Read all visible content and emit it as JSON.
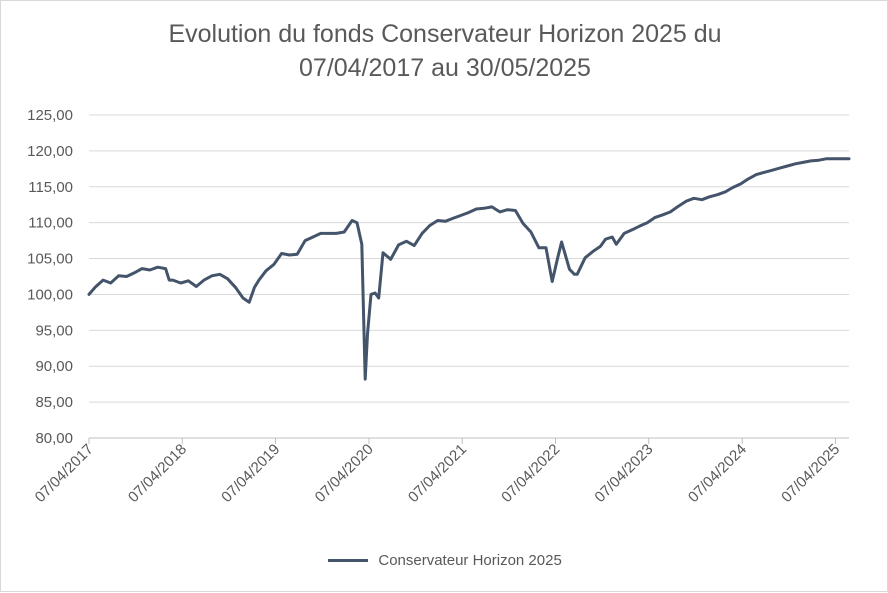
{
  "chart_data": {
    "type": "line",
    "title_line1": "Evolution du fonds Conservateur Horizon 2025 du",
    "title_line2": "07/04/2017 au 30/05/2025",
    "xlabel": "",
    "ylabel": "",
    "ylim": [
      80,
      125
    ],
    "yticks": [
      "80,00",
      "85,00",
      "90,00",
      "95,00",
      "100,00",
      "105,00",
      "110,00",
      "115,00",
      "120,00",
      "125,00"
    ],
    "xticks": [
      "07/04/2017",
      "07/04/2018",
      "07/04/2019",
      "07/04/2020",
      "07/04/2021",
      "07/04/2022",
      "07/04/2023",
      "07/04/2024",
      "07/04/2025"
    ],
    "x_range": [
      "07/04/2017",
      "30/05/2025"
    ],
    "grid": "horizontal",
    "legend_position": "bottom",
    "color": "#44546a",
    "series": [
      {
        "name": "Conservateur Horizon 2025",
        "x": [
          "2017-04-07",
          "2017-05-01",
          "2017-06-01",
          "2017-07-01",
          "2017-08-01",
          "2017-09-01",
          "2017-10-01",
          "2017-11-01",
          "2017-12-01",
          "2018-01-01",
          "2018-02-01",
          "2018-02-15",
          "2018-03-01",
          "2018-04-01",
          "2018-05-01",
          "2018-06-01",
          "2018-07-01",
          "2018-08-01",
          "2018-09-01",
          "2018-10-01",
          "2018-11-01",
          "2018-12-01",
          "2018-12-25",
          "2019-01-15",
          "2019-02-01",
          "2019-03-01",
          "2019-04-01",
          "2019-05-01",
          "2019-06-01",
          "2019-07-01",
          "2019-08-01",
          "2019-09-01",
          "2019-10-01",
          "2019-11-01",
          "2019-12-01",
          "2020-01-01",
          "2020-02-01",
          "2020-02-20",
          "2020-03-10",
          "2020-03-23",
          "2020-04-01",
          "2020-04-15",
          "2020-05-01",
          "2020-05-15",
          "2020-06-01",
          "2020-07-01",
          "2020-08-01",
          "2020-09-01",
          "2020-10-01",
          "2020-11-01",
          "2020-12-01",
          "2021-01-01",
          "2021-02-01",
          "2021-03-01",
          "2021-04-01",
          "2021-05-01",
          "2021-06-01",
          "2021-07-01",
          "2021-08-01",
          "2021-09-01",
          "2021-10-01",
          "2021-11-01",
          "2021-12-01",
          "2022-01-01",
          "2022-02-01",
          "2022-03-01",
          "2022-03-25",
          "2022-04-15",
          "2022-05-01",
          "2022-06-01",
          "2022-06-20",
          "2022-07-01",
          "2022-08-01",
          "2022-09-01",
          "2022-09-30",
          "2022-10-20",
          "2022-11-15",
          "2022-12-01",
          "2023-01-01",
          "2023-02-01",
          "2023-03-01",
          "2023-04-01",
          "2023-05-01",
          "2023-06-01",
          "2023-07-01",
          "2023-08-01",
          "2023-09-01",
          "2023-10-01",
          "2023-11-01",
          "2023-12-01",
          "2024-01-01",
          "2024-02-01",
          "2024-03-01",
          "2024-04-01",
          "2024-05-01",
          "2024-06-01",
          "2024-07-01",
          "2024-08-01",
          "2024-09-01",
          "2024-10-01",
          "2024-11-01",
          "2024-12-01",
          "2025-01-01",
          "2025-02-01",
          "2025-03-01",
          "2025-04-01",
          "2025-05-01",
          "2025-05-30"
        ],
        "values": [
          100.0,
          101.0,
          102.0,
          101.6,
          102.6,
          102.5,
          103.0,
          103.6,
          103.4,
          103.8,
          103.6,
          102.0,
          102.0,
          101.6,
          101.9,
          101.1,
          102.0,
          102.6,
          102.8,
          102.2,
          101.0,
          99.5,
          98.9,
          101.0,
          102.0,
          103.3,
          104.2,
          105.7,
          105.5,
          105.6,
          107.5,
          108.0,
          108.5,
          108.5,
          108.5,
          108.7,
          110.3,
          110.0,
          107.0,
          88.2,
          94.5,
          100.0,
          100.2,
          99.5,
          105.8,
          104.9,
          106.9,
          107.4,
          106.8,
          108.5,
          109.6,
          110.3,
          110.2,
          110.6,
          111.0,
          111.4,
          111.9,
          112.0,
          112.2,
          111.5,
          111.8,
          111.7,
          109.9,
          108.7,
          106.5,
          106.5,
          101.8,
          105.0,
          107.3,
          103.5,
          102.8,
          102.8,
          105.1,
          106.0,
          106.7,
          107.7,
          108.0,
          107.0,
          108.5,
          109.0,
          109.5,
          110.0,
          110.7,
          111.1,
          111.5,
          112.3,
          113.0,
          113.4,
          113.2,
          113.6,
          113.9,
          114.3,
          114.9,
          115.4,
          116.1,
          116.7,
          117.0,
          117.3,
          117.6,
          117.9,
          118.2,
          118.4,
          118.6,
          118.7,
          118.9,
          118.9,
          118.9,
          118.9
        ]
      }
    ]
  }
}
